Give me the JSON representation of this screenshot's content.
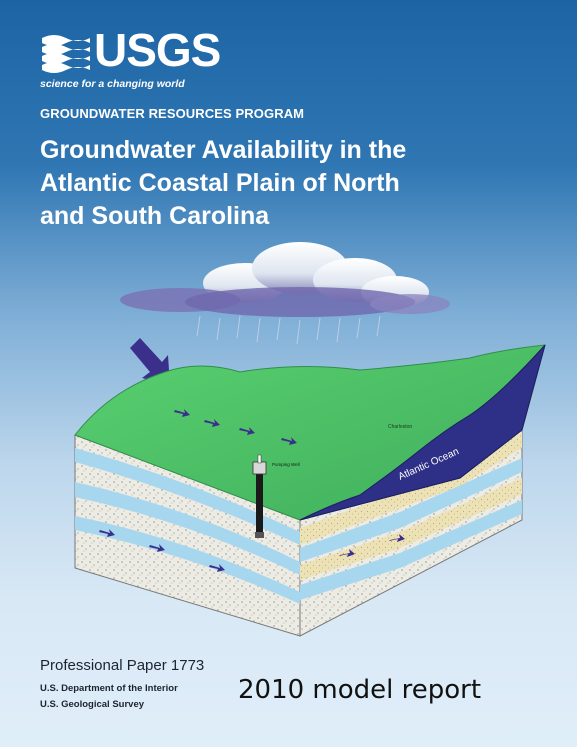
{
  "logo": {
    "text": "USGS",
    "tagline": "science for a changing world",
    "icon": "usgs-wave-mark"
  },
  "program": "GROUNDWATER RESOURCES PROGRAM",
  "title_lines": [
    "Groundwater Availability in the",
    "Atlantic Coastal Plain of North",
    "and South Carolina"
  ],
  "illustration": {
    "ocean_label": "Atlantic Ocean",
    "well_label": "Pumping Well",
    "town_label": "Charleston"
  },
  "footer": {
    "paper": "Professional Paper 1773",
    "department": "U.S. Department of the Interior",
    "survey": "U.S. Geological Survey"
  },
  "overlay_caption": "2010 model report",
  "colors": {
    "land": "#4fc56a",
    "ocean": "#2e2f86",
    "sky_top": "#1c64a4",
    "sky_bottom": "#dfeef9"
  }
}
